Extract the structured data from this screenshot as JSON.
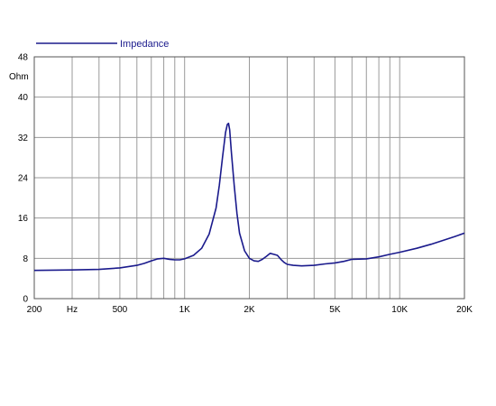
{
  "chart_data": {
    "type": "line",
    "title": "",
    "xlabel": "",
    "ylabel": "",
    "y_unit_label": "Ohm",
    "x_scale": "log",
    "xlim": [
      200,
      20000
    ],
    "ylim": [
      0,
      48
    ],
    "grid": true,
    "legend": "top-left",
    "x_tick_labels": [
      {
        "value": 200,
        "label": "200"
      },
      {
        "value": 300,
        "label": "Hz"
      },
      {
        "value": 500,
        "label": "500"
      },
      {
        "value": 1000,
        "label": "1K"
      },
      {
        "value": 2000,
        "label": "2K"
      },
      {
        "value": 5000,
        "label": "5K"
      },
      {
        "value": 10000,
        "label": "10K"
      },
      {
        "value": 20000,
        "label": "20K"
      }
    ],
    "x_gridlines": [
      200,
      300,
      400,
      500,
      600,
      700,
      800,
      900,
      1000,
      2000,
      3000,
      4000,
      5000,
      6000,
      7000,
      8000,
      9000,
      10000,
      20000
    ],
    "y_ticks": [
      0,
      8,
      16,
      24,
      32,
      40,
      48
    ],
    "series": [
      {
        "name": "Impedance",
        "color": "#1a1a8c",
        "x": [
          200,
          300,
          400,
          500,
          600,
          650,
          700,
          750,
          800,
          850,
          900,
          950,
          1000,
          1100,
          1200,
          1300,
          1400,
          1450,
          1500,
          1550,
          1580,
          1600,
          1620,
          1650,
          1700,
          1750,
          1800,
          1900,
          2000,
          2100,
          2200,
          2300,
          2400,
          2500,
          2600,
          2700,
          2800,
          2900,
          3000,
          3200,
          3500,
          4000,
          4500,
          5000,
          5500,
          6000,
          7000,
          8000,
          9000,
          10000,
          12000,
          14000,
          16000,
          18000,
          20000
        ],
        "values": [
          5.6,
          5.7,
          5.8,
          6.1,
          6.6,
          7.0,
          7.5,
          7.9,
          8.0,
          7.8,
          7.7,
          7.7,
          7.9,
          8.6,
          10.0,
          12.8,
          18.0,
          22.5,
          28.0,
          33.0,
          34.6,
          34.8,
          33.5,
          29.0,
          22.5,
          17.0,
          13.0,
          9.5,
          8.0,
          7.5,
          7.4,
          7.8,
          8.4,
          9.0,
          8.8,
          8.6,
          7.8,
          7.2,
          6.8,
          6.6,
          6.5,
          6.6,
          6.9,
          7.1,
          7.4,
          7.8,
          7.9,
          8.3,
          8.8,
          9.2,
          10.0,
          10.8,
          11.6,
          12.3,
          13.0
        ]
      }
    ]
  }
}
